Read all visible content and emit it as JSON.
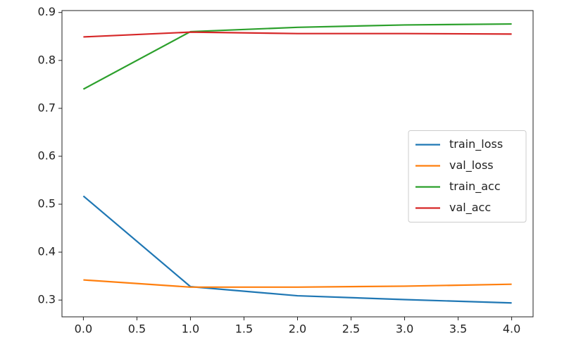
{
  "chart_data": {
    "type": "line",
    "x": [
      0,
      1,
      2,
      3,
      4
    ],
    "series": [
      {
        "name": "train_loss",
        "color": "#1f77b4",
        "values": [
          0.517,
          0.328,
          0.309,
          0.301,
          0.294
        ]
      },
      {
        "name": "val_loss",
        "color": "#ff7f0e",
        "values": [
          0.342,
          0.327,
          0.327,
          0.329,
          0.333
        ]
      },
      {
        "name": "train_acc",
        "color": "#2ca02c",
        "values": [
          0.74,
          0.86,
          0.869,
          0.874,
          0.876
        ]
      },
      {
        "name": "val_acc",
        "color": "#d62728",
        "values": [
          0.849,
          0.859,
          0.856,
          0.856,
          0.855
        ]
      }
    ],
    "xlim": [
      -0.2,
      4.2
    ],
    "xticks": [
      {
        "value": 0,
        "label": "0.0"
      },
      {
        "value": 0.5,
        "label": "0.5"
      },
      {
        "value": 1,
        "label": "1.0"
      },
      {
        "value": 1.5,
        "label": "1.5"
      },
      {
        "value": 2,
        "label": "2.0"
      },
      {
        "value": 2.5,
        "label": "2.5"
      },
      {
        "value": 3,
        "label": "3.0"
      },
      {
        "value": 3.5,
        "label": "3.5"
      },
      {
        "value": 4,
        "label": "4.0"
      }
    ],
    "ylim": [
      0.265,
      0.904
    ],
    "yticks": [
      0.3,
      0.4,
      0.5,
      0.6,
      0.7,
      0.8,
      0.9
    ],
    "legend": "center right"
  }
}
